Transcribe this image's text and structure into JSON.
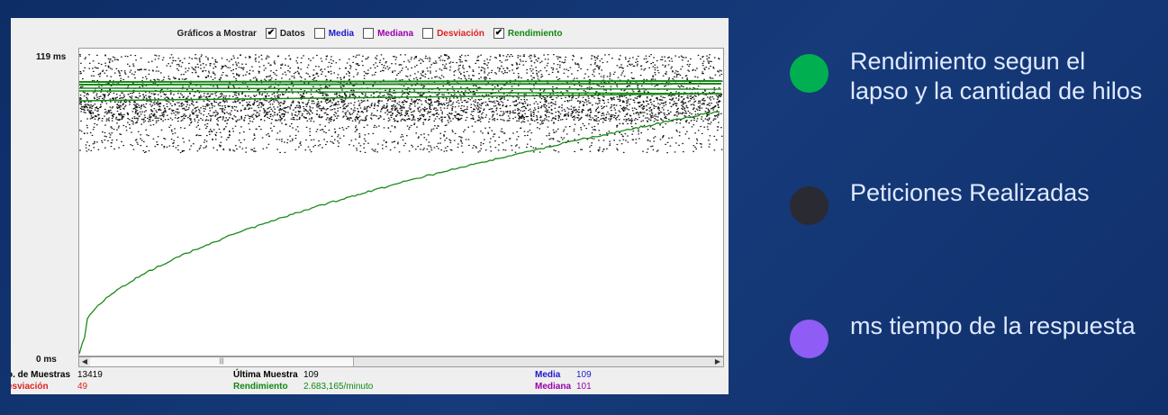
{
  "toolbar": {
    "title": "Gráficos a Mostrar",
    "options": [
      {
        "label": "Datos",
        "checked": true,
        "color": "#222222"
      },
      {
        "label": "Media",
        "checked": false,
        "color": "#1a1acc"
      },
      {
        "label": "Mediana",
        "checked": false,
        "color": "#9900aa"
      },
      {
        "label": "Desviación",
        "checked": false,
        "color": "#dd2222"
      },
      {
        "label": "Rendimiento",
        "checked": true,
        "color": "#118811"
      }
    ],
    "check_mark": "✔"
  },
  "axis": {
    "top_label": "119  ms",
    "bottom_label": "0  ms"
  },
  "scrollbar": {
    "left_arrow": "◀",
    "right_arrow": "▶",
    "thumb_grip": "|||"
  },
  "stats": {
    "samples_label": "o. de Muestras",
    "samples_value": "13419",
    "deviation_label": "esviación",
    "deviation_value": "49",
    "last_label": "Última Muestra",
    "last_value": "109",
    "throughput_label": "Rendimiento",
    "throughput_value": "2.683,165/minuto",
    "mean_label": "Media",
    "mean_value": "109",
    "median_label": "Mediana",
    "median_value": "101"
  },
  "legend": [
    {
      "text": "Rendimiento segun el lapso y la cantidad de hilos",
      "color": "#00b050"
    },
    {
      "text": "Peticiones Realizadas",
      "color": "#2a2a33"
    },
    {
      "text": "ms tiempo de la respuesta",
      "color": "#8f5cf5"
    }
  ]
}
